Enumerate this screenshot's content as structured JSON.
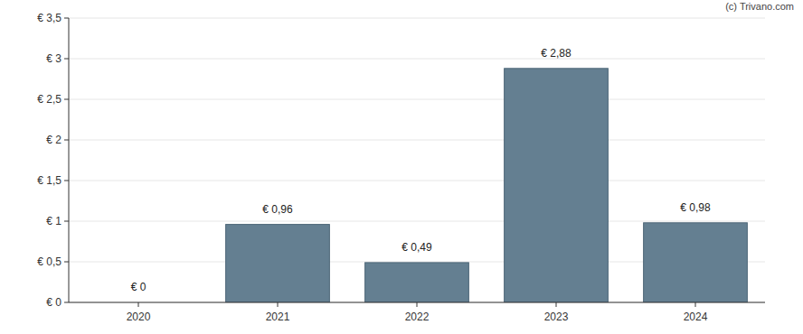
{
  "chart_data": {
    "type": "bar",
    "annotations": [
      "(c) Trivano.com"
    ],
    "categories": [
      "2020",
      "2021",
      "2022",
      "2023",
      "2024"
    ],
    "values": [
      0,
      0.96,
      0.49,
      2.88,
      0.98
    ],
    "value_labels": [
      "€ 0",
      "€ 0,96",
      "€ 0,49",
      "€ 2,88",
      "€ 0,98"
    ],
    "data_labels": true,
    "color": "#647f91",
    "ylim": [
      0,
      3.5
    ],
    "yticks": [
      {
        "value": 0,
        "label": "€ 0"
      },
      {
        "value": 0.5,
        "label": "€ 0,5"
      },
      {
        "value": 1,
        "label": "€ 1"
      },
      {
        "value": 1.5,
        "label": "€ 1,5"
      },
      {
        "value": 2,
        "label": "€ 2"
      },
      {
        "value": 2.5,
        "label": "€ 2,5"
      },
      {
        "value": 3,
        "label": "€ 3"
      },
      {
        "value": 3.5,
        "label": "€ 3,5"
      }
    ],
    "grid": true
  }
}
